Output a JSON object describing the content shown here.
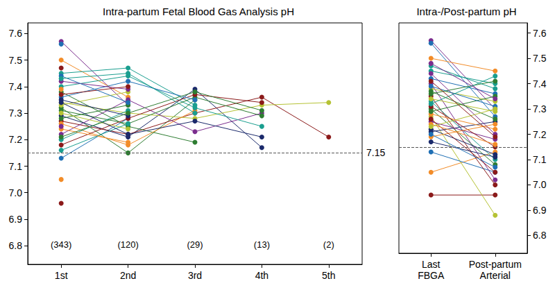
{
  "chart_data": [
    {
      "type": "line",
      "title": "Intra-partum Fetal Blood Gas Analysis pH",
      "categories": [
        "1st",
        "2nd",
        "3rd",
        "4th",
        "5th"
      ],
      "annotations": [
        {
          "category": "1st",
          "text": "(343)"
        },
        {
          "category": "2nd",
          "text": "(120)"
        },
        {
          "category": "3rd",
          "text": "(29)"
        },
        {
          "category": "4th",
          "text": "(13)"
        },
        {
          "category": "5th",
          "text": "(2)"
        }
      ],
      "ylim": [
        6.73,
        7.64
      ],
      "yticks": [
        6.8,
        6.9,
        {
          "value": 7,
          "label": "7.0"
        },
        7.1,
        7.2,
        7.3,
        7.4,
        7.5,
        7.6
      ],
      "grid": false,
      "marker": "circle",
      "reference_line": {
        "value": 7.15,
        "label": "7.15",
        "line_style": "dashed"
      },
      "series": [
        {
          "color": "#8b1a1a",
          "values": [
            6.96,
            null,
            null,
            null,
            null
          ]
        },
        {
          "color": "#f28c28",
          "values": [
            7.05,
            null,
            null,
            null,
            null
          ]
        },
        {
          "color": "#1f6fb4",
          "values": [
            7.13,
            7.28,
            null,
            null,
            null
          ]
        },
        {
          "color": "#7b2d8e",
          "values": [
            7.57,
            7.33,
            null,
            null,
            null
          ]
        },
        {
          "color": "#1f6fb4",
          "values": [
            7.56,
            null,
            null,
            null,
            null
          ]
        },
        {
          "color": "#f28c28",
          "values": [
            7.5,
            7.36,
            null,
            null,
            null
          ]
        },
        {
          "color": "#1a9e8f",
          "values": [
            7.45,
            7.47,
            7.33,
            null,
            null
          ]
        },
        {
          "color": "#2e7d32",
          "values": [
            7.32,
            7.15,
            7.35,
            null,
            null
          ]
        },
        {
          "color": "#1b2a6b",
          "values": [
            7.29,
            7.21,
            7.39,
            7.17,
            null
          ]
        },
        {
          "color": "#8b1a1a",
          "values": [
            7.27,
            7.22,
            7.3,
            7.36,
            7.21
          ]
        },
        {
          "color": "#b5c234",
          "values": [
            7.34,
            7.3,
            7.28,
            7.33,
            7.34
          ]
        },
        {
          "color": "#2e7d32",
          "values": [
            7.38,
            7.25,
            7.19,
            null,
            null
          ]
        },
        {
          "color": "#7b2d8e",
          "values": [
            7.22,
            7.35,
            7.23,
            7.3,
            null
          ]
        },
        {
          "color": "#f28c28",
          "values": [
            7.26,
            7.18,
            7.31,
            null,
            null
          ]
        },
        {
          "color": "#1a9e8f",
          "values": [
            7.4,
            7.44,
            7.32,
            7.25,
            null
          ]
        },
        {
          "color": "#2e7d32",
          "values": [
            7.31,
            7.26,
            7.36,
            7.29,
            null
          ]
        },
        {
          "color": "#8b1a1a",
          "values": [
            7.18,
            7.28,
            7.37,
            7.34,
            null
          ]
        },
        {
          "color": "#1f6fb4",
          "values": [
            7.36,
            7.42,
            7.35,
            null,
            null
          ]
        },
        {
          "color": "#b5c234",
          "values": [
            7.33,
            7.38,
            null,
            null,
            null
          ]
        },
        {
          "color": "#7b2d8e",
          "values": [
            7.42,
            7.39,
            null,
            null,
            null
          ]
        },
        {
          "color": "#1a9e8f",
          "values": [
            7.2,
            7.31,
            null,
            null,
            null
          ]
        },
        {
          "color": "#f28c28",
          "values": [
            7.24,
            7.19,
            null,
            null,
            null
          ]
        },
        {
          "color": "#1b2a6b",
          "values": [
            7.35,
            7.29,
            null,
            null,
            null
          ]
        },
        {
          "color": "#2e7d32",
          "values": [
            7.28,
            7.33,
            null,
            null,
            null
          ]
        },
        {
          "color": "#8b1a1a",
          "values": [
            7.37,
            7.4,
            null,
            null,
            null
          ]
        },
        {
          "color": "#b5c234",
          "values": [
            7.3,
            7.24,
            null,
            null,
            null
          ]
        },
        {
          "color": "#1f6fb4",
          "values": [
            7.44,
            7.34,
            null,
            null,
            null
          ]
        },
        {
          "color": "#7b2d8e",
          "values": [
            7.25,
            null,
            null,
            null,
            null
          ]
        },
        {
          "color": "#f28c28",
          "values": [
            7.39,
            null,
            null,
            null,
            null
          ]
        },
        {
          "color": "#1a9e8f",
          "values": [
            7.16,
            7.26,
            null,
            null,
            null
          ]
        },
        {
          "color": "#8b1a1a",
          "values": [
            7.47,
            null,
            null,
            null,
            null
          ]
        },
        {
          "color": "#1b2a6b",
          "values": [
            7.34,
            7.22,
            7.27,
            7.21,
            null
          ]
        },
        {
          "color": "#2e7d32",
          "values": [
            7.21,
            7.3,
            7.38,
            7.31,
            null
          ]
        },
        {
          "color": "#1a9e8f",
          "values": [
            7.43,
            7.45,
            7.3,
            null,
            null
          ]
        }
      ]
    },
    {
      "type": "line",
      "title": "Intra-/Post-partum pH",
      "categories": [
        "Last\nFBGA",
        "Post-partum\nArterial"
      ],
      "ylim": [
        6.73,
        7.64
      ],
      "yticks": [
        6.8,
        6.9,
        {
          "value": 7,
          "label": "7.0"
        },
        7.1,
        7.2,
        7.3,
        7.4,
        7.5,
        7.6
      ],
      "grid": false,
      "marker": "circle",
      "reference_line": {
        "value": 7.15,
        "line_style": "dashed"
      },
      "series": [
        {
          "color": "#8b1a1a",
          "values": [
            6.96,
            6.96
          ]
        },
        {
          "color": "#f28c28",
          "values": [
            7.05,
            7.13
          ]
        },
        {
          "color": "#b5c234",
          "values": [
            7.27,
            6.88
          ]
        },
        {
          "color": "#7b2d8e",
          "values": [
            7.57,
            7.3
          ]
        },
        {
          "color": "#1f6fb4",
          "values": [
            7.56,
            7.27
          ]
        },
        {
          "color": "#f28c28",
          "values": [
            7.5,
            7.45
          ]
        },
        {
          "color": "#1a9e8f",
          "values": [
            7.45,
            7.4
          ]
        },
        {
          "color": "#1f6fb4",
          "values": [
            7.13,
            7.05
          ]
        },
        {
          "color": "#7b2d8e",
          "values": [
            7.4,
            7.02
          ]
        },
        {
          "color": "#8b1a1a",
          "values": [
            7.35,
            7.0
          ]
        },
        {
          "color": "#2e7d32",
          "values": [
            7.3,
            7.08
          ]
        },
        {
          "color": "#1b2a6b",
          "values": [
            7.21,
            7.25
          ]
        },
        {
          "color": "#b5c234",
          "values": [
            7.38,
            7.33
          ]
        },
        {
          "color": "#1a9e8f",
          "values": [
            7.33,
            7.1
          ]
        },
        {
          "color": "#f28c28",
          "values": [
            7.28,
            7.22
          ]
        },
        {
          "color": "#1f6fb4",
          "values": [
            7.42,
            7.36
          ]
        },
        {
          "color": "#7b2d8e",
          "values": [
            7.25,
            7.18
          ]
        },
        {
          "color": "#2e7d32",
          "values": [
            7.36,
            7.41
          ]
        },
        {
          "color": "#8b1a1a",
          "values": [
            7.31,
            7.15
          ]
        },
        {
          "color": "#1b2a6b",
          "values": [
            7.22,
            7.12
          ]
        },
        {
          "color": "#1a9e8f",
          "values": [
            7.47,
            7.38
          ]
        },
        {
          "color": "#b5c234",
          "values": [
            7.34,
            7.29
          ]
        },
        {
          "color": "#f28c28",
          "values": [
            7.19,
            7.24
          ]
        },
        {
          "color": "#2e7d32",
          "values": [
            7.29,
            7.35
          ]
        },
        {
          "color": "#7b2d8e",
          "values": [
            7.44,
            7.2
          ]
        },
        {
          "color": "#8b1a1a",
          "values": [
            7.26,
            7.05
          ]
        },
        {
          "color": "#1f6fb4",
          "values": [
            7.39,
            7.31
          ]
        },
        {
          "color": "#1b2a6b",
          "values": [
            7.17,
            7.11
          ]
        },
        {
          "color": "#1a9e8f",
          "values": [
            7.32,
            7.43
          ]
        },
        {
          "color": "#f28c28",
          "values": [
            7.24,
            7.16
          ]
        },
        {
          "color": "#7b2d8e",
          "values": [
            7.48,
            7.34
          ]
        },
        {
          "color": "#2e7d32",
          "values": [
            7.37,
            7.26
          ]
        },
        {
          "color": "#b5c234",
          "values": [
            7.23,
            7.3
          ]
        },
        {
          "color": "#8b1a1a",
          "values": [
            7.41,
            7.19
          ]
        },
        {
          "color": "#1f6fb4",
          "values": [
            7.2,
            7.07
          ]
        }
      ]
    }
  ]
}
